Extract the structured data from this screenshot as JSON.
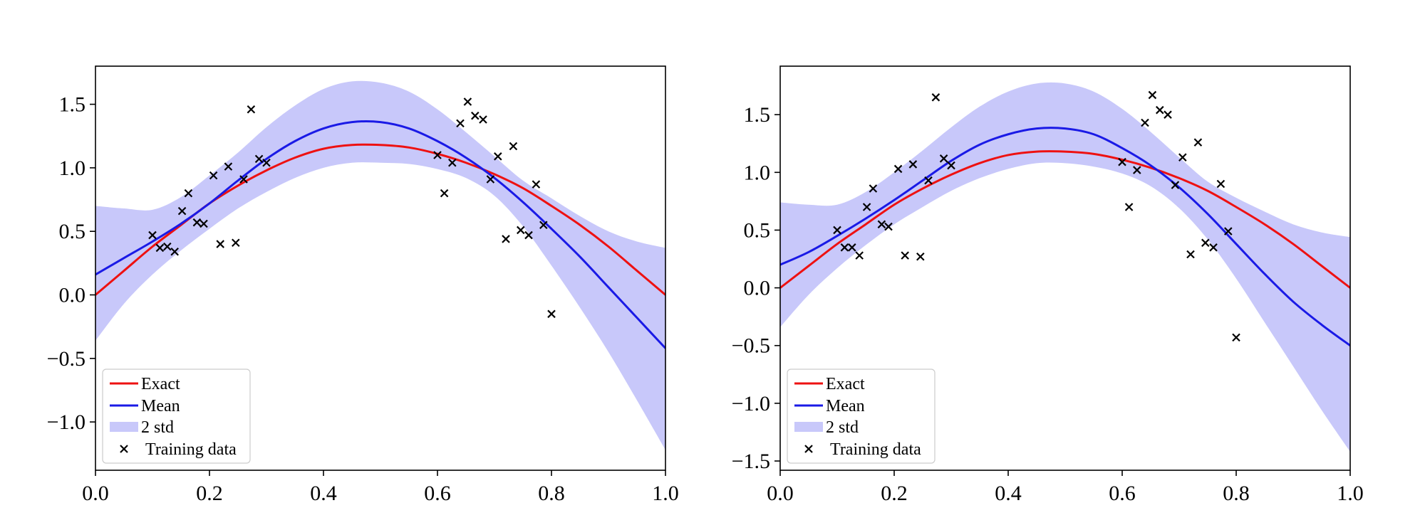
{
  "chart_data": [
    {
      "type": "line",
      "title": "",
      "xlabel": "",
      "ylabel": "",
      "xlim": [
        0.0,
        1.0
      ],
      "ylim": [
        -1.38,
        1.8
      ],
      "xticks": [
        0.0,
        0.2,
        0.4,
        0.6,
        0.8,
        1.0
      ],
      "xtick_labels": [
        "0.0",
        "0.2",
        "0.4",
        "0.6",
        "0.8",
        "1.0"
      ],
      "yticks": [
        -1.0,
        -0.5,
        0.0,
        0.5,
        1.0,
        1.5
      ],
      "ytick_labels": [
        "−1.0",
        "−0.5",
        "0.0",
        "0.5",
        "1.0",
        "1.5"
      ],
      "grid": false,
      "legend_position": "lower-left",
      "legend": [
        "Exact",
        "Mean",
        "2 std",
        "Training data"
      ],
      "colors": {
        "exact": "#ee1111",
        "mean": "#1a1ae6",
        "band": "#c8c8fa",
        "points": "#000000"
      },
      "x": [
        0.0,
        0.05,
        0.1,
        0.15,
        0.2,
        0.25,
        0.3,
        0.35,
        0.4,
        0.45,
        0.5,
        0.55,
        0.6,
        0.65,
        0.7,
        0.75,
        0.8,
        0.85,
        0.9,
        0.95,
        1.0
      ],
      "series": [
        {
          "name": "Exact",
          "values": [
            0.0,
            0.19,
            0.38,
            0.55,
            0.72,
            0.86,
            0.98,
            1.08,
            1.15,
            1.18,
            1.18,
            1.16,
            1.11,
            1.04,
            0.95,
            0.84,
            0.7,
            0.55,
            0.38,
            0.19,
            0.0
          ]
        },
        {
          "name": "Mean",
          "values": [
            0.16,
            0.29,
            0.42,
            0.56,
            0.72,
            0.9,
            1.07,
            1.21,
            1.31,
            1.36,
            1.36,
            1.31,
            1.21,
            1.08,
            0.92,
            0.73,
            0.52,
            0.3,
            0.06,
            -0.18,
            -0.42
          ]
        },
        {
          "name": "2 std",
          "lower": [
            -0.36,
            -0.07,
            0.16,
            0.35,
            0.52,
            0.68,
            0.81,
            0.92,
            1.0,
            1.04,
            1.04,
            1.03,
            0.99,
            0.92,
            0.78,
            0.54,
            0.23,
            -0.1,
            -0.45,
            -0.83,
            -1.22
          ],
          "upper": [
            0.7,
            0.68,
            0.67,
            0.77,
            0.94,
            1.12,
            1.32,
            1.49,
            1.62,
            1.68,
            1.67,
            1.6,
            1.46,
            1.28,
            1.09,
            0.9,
            0.76,
            0.62,
            0.5,
            0.42,
            0.37
          ]
        }
      ],
      "training_data": {
        "name": "Training data",
        "x": [
          0.1,
          0.113,
          0.126,
          0.139,
          0.152,
          0.163,
          0.178,
          0.19,
          0.207,
          0.219,
          0.233,
          0.246,
          0.26,
          0.273,
          0.287,
          0.3,
          0.6,
          0.612,
          0.626,
          0.64,
          0.653,
          0.666,
          0.68,
          0.693,
          0.706,
          0.72,
          0.733,
          0.746,
          0.76,
          0.773,
          0.786,
          0.8
        ],
        "y": [
          0.47,
          0.37,
          0.38,
          0.34,
          0.66,
          0.8,
          0.57,
          0.56,
          0.94,
          0.4,
          1.01,
          0.41,
          0.91,
          1.46,
          1.07,
          1.04,
          1.1,
          0.8,
          1.04,
          1.35,
          1.52,
          1.41,
          1.38,
          0.91,
          1.09,
          0.44,
          1.17,
          0.51,
          0.47,
          0.87,
          0.55,
          -0.15
        ]
      }
    },
    {
      "type": "line",
      "title": "",
      "xlabel": "",
      "ylabel": "",
      "xlim": [
        0.0,
        1.0
      ],
      "ylim": [
        -1.58,
        1.92
      ],
      "xticks": [
        0.0,
        0.2,
        0.4,
        0.6,
        0.8,
        1.0
      ],
      "xtick_labels": [
        "0.0",
        "0.2",
        "0.4",
        "0.6",
        "0.8",
        "1.0"
      ],
      "yticks": [
        -1.5,
        -1.0,
        -0.5,
        0.0,
        0.5,
        1.0,
        1.5
      ],
      "ytick_labels": [
        "−1.5",
        "−1.0",
        "−0.5",
        "0.0",
        "0.5",
        "1.0",
        "1.5"
      ],
      "grid": false,
      "legend_position": "lower-left",
      "legend": [
        "Exact",
        "Mean",
        "2 std",
        "Training data"
      ],
      "colors": {
        "exact": "#ee1111",
        "mean": "#1a1ae6",
        "band": "#c8c8fa",
        "points": "#000000"
      },
      "x": [
        0.0,
        0.05,
        0.1,
        0.15,
        0.2,
        0.25,
        0.3,
        0.35,
        0.4,
        0.45,
        0.5,
        0.55,
        0.6,
        0.65,
        0.7,
        0.75,
        0.8,
        0.85,
        0.9,
        0.95,
        1.0
      ],
      "series": [
        {
          "name": "Exact",
          "values": [
            0.0,
            0.19,
            0.38,
            0.55,
            0.72,
            0.86,
            0.98,
            1.08,
            1.15,
            1.18,
            1.18,
            1.16,
            1.11,
            1.04,
            0.95,
            0.84,
            0.7,
            0.55,
            0.38,
            0.19,
            0.0
          ]
        },
        {
          "name": "Mean",
          "values": [
            0.2,
            0.31,
            0.45,
            0.6,
            0.76,
            0.93,
            1.1,
            1.24,
            1.33,
            1.38,
            1.38,
            1.33,
            1.21,
            1.06,
            0.87,
            0.64,
            0.38,
            0.12,
            -0.12,
            -0.32,
            -0.5
          ]
        },
        {
          "name": "2 std",
          "lower": [
            -0.34,
            -0.06,
            0.17,
            0.37,
            0.55,
            0.7,
            0.84,
            0.95,
            1.03,
            1.08,
            1.08,
            1.05,
            0.99,
            0.88,
            0.69,
            0.42,
            0.08,
            -0.3,
            -0.68,
            -1.06,
            -1.42
          ],
          "upper": [
            0.74,
            0.72,
            0.72,
            0.83,
            1.0,
            1.19,
            1.39,
            1.57,
            1.7,
            1.77,
            1.77,
            1.7,
            1.55,
            1.35,
            1.13,
            0.92,
            0.78,
            0.66,
            0.55,
            0.48,
            0.44
          ]
        }
      ],
      "training_data": {
        "name": "Training data",
        "x": [
          0.1,
          0.113,
          0.126,
          0.139,
          0.152,
          0.163,
          0.178,
          0.19,
          0.207,
          0.219,
          0.233,
          0.246,
          0.26,
          0.273,
          0.287,
          0.3,
          0.6,
          0.612,
          0.626,
          0.64,
          0.653,
          0.666,
          0.68,
          0.693,
          0.706,
          0.72,
          0.733,
          0.746,
          0.76,
          0.773,
          0.786,
          0.8
        ],
        "y": [
          0.5,
          0.35,
          0.35,
          0.28,
          0.7,
          0.86,
          0.55,
          0.53,
          1.03,
          0.28,
          1.07,
          0.27,
          0.93,
          1.65,
          1.12,
          1.06,
          1.09,
          0.7,
          1.02,
          1.43,
          1.67,
          1.54,
          1.5,
          0.89,
          1.13,
          0.29,
          1.26,
          0.39,
          0.35,
          0.9,
          0.49,
          -0.43
        ]
      }
    }
  ]
}
